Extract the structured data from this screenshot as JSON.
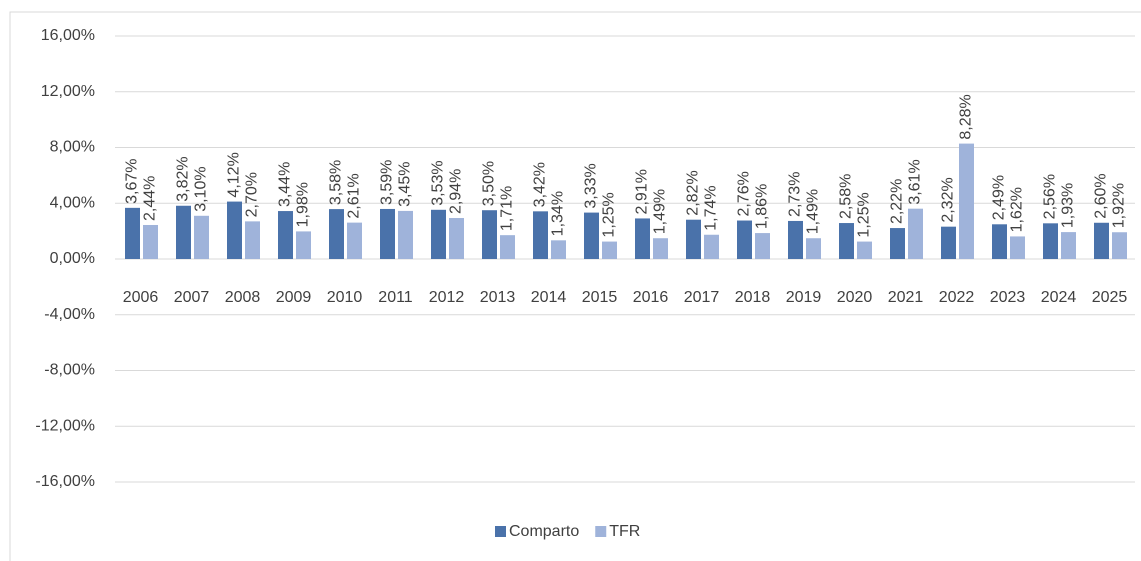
{
  "chart_data": {
    "type": "bar",
    "categories": [
      "2006",
      "2007",
      "2008",
      "2009",
      "2010",
      "2011",
      "2012",
      "2013",
      "2014",
      "2015",
      "2016",
      "2017",
      "2018",
      "2019",
      "2020",
      "2021",
      "2022",
      "2023",
      "2024",
      "2025"
    ],
    "series": [
      {
        "name": "Comparto",
        "color": "#4a72aa",
        "values": [
          3.67,
          3.82,
          4.12,
          3.44,
          3.58,
          3.59,
          3.53,
          3.5,
          3.42,
          3.33,
          2.91,
          2.82,
          2.76,
          2.73,
          2.58,
          2.22,
          2.32,
          2.49,
          2.56,
          2.6
        ],
        "value_labels": [
          "3,67%",
          "3,82%",
          "4,12%",
          "3,44%",
          "3,58%",
          "3,59%",
          "3,53%",
          "3,50%",
          "3,42%",
          "3,33%",
          "2,91%",
          "2,82%",
          "2,76%",
          "2,73%",
          "2,58%",
          "2,22%",
          "2,32%",
          "2,49%",
          "2,56%",
          "2,60%"
        ]
      },
      {
        "name": "TFR",
        "color": "#9fb3da",
        "values": [
          2.44,
          3.1,
          2.7,
          1.98,
          2.61,
          3.45,
          2.94,
          1.71,
          1.34,
          1.25,
          1.49,
          1.74,
          1.86,
          1.49,
          1.25,
          3.61,
          8.28,
          1.62,
          1.93,
          1.92
        ],
        "value_labels": [
          "2,44%",
          "3,10%",
          "2,70%",
          "1,98%",
          "2,61%",
          "3,45%",
          "2,94%",
          "1,71%",
          "1,34%",
          "1,25%",
          "1,49%",
          "1,74%",
          "1,86%",
          "1,49%",
          "1,25%",
          "3,61%",
          "8,28%",
          "1,62%",
          "1,93%",
          "1,92%"
        ]
      }
    ],
    "ylim": [
      -16,
      16
    ],
    "yticks": [
      {
        "value": 16,
        "label": "16,00%"
      },
      {
        "value": 12,
        "label": "12,00%"
      },
      {
        "value": 8,
        "label": "8,00%"
      },
      {
        "value": 4,
        "label": "4,00%"
      },
      {
        "value": 0,
        "label": "0,00%"
      },
      {
        "value": -4,
        "label": "-4,00%"
      },
      {
        "value": -8,
        "label": "-8,00%"
      },
      {
        "value": -12,
        "label": "-12,00%"
      },
      {
        "value": -16,
        "label": "-16,00%"
      }
    ],
    "grid": true,
    "legend": "bottom"
  }
}
